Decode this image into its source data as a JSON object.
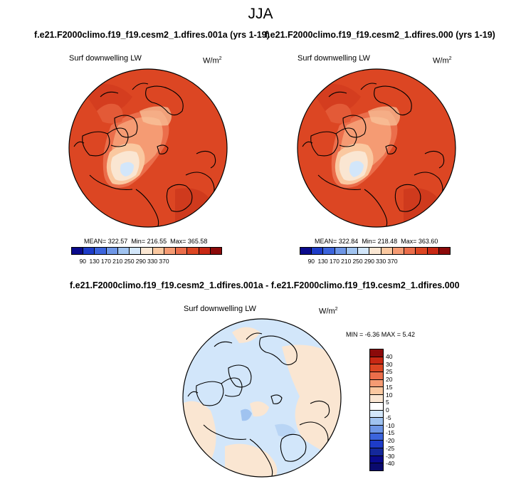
{
  "title": "JJA",
  "panels": [
    {
      "case": "f.e21.F2000climo.f19_f19.cesm2_1.dfires.001a (yrs 1-19)",
      "variable": "Surf downwelling LW",
      "units": "W/m",
      "units_exp": "2",
      "mean_text": "MEAN= 322.57",
      "min_text": "Min= 216.55",
      "max_text": "Max= 365.58"
    },
    {
      "case": "f.e21.F2000climo.f19_f19.cesm2_1.dfires.000 (yrs 1-19)",
      "variable": "Surf downwelling LW",
      "units": "W/m",
      "units_exp": "2",
      "mean_text": "MEAN= 322.84",
      "min_text": "Min= 218.48",
      "max_text": "Max= 363.60"
    }
  ],
  "abs_colorbar": {
    "ticks": [
      "90",
      "130",
      "170",
      "210",
      "250",
      "290",
      "330",
      "370"
    ],
    "colors": [
      "#0a0a8c",
      "#1e3cc8",
      "#3c64dc",
      "#6e96e6",
      "#a0c3f0",
      "#d2e6fa",
      "#fae6d2",
      "#fac8a0",
      "#f59b73",
      "#eb6e4b",
      "#dc4623",
      "#c82814",
      "#8c0a0a"
    ]
  },
  "diff": {
    "title": "f.e21.F2000climo.f19_f19.cesm2_1.dfires.001a - f.e21.F2000climo.f19_f19.cesm2_1.dfires.000",
    "variable": "Surf downwelling LW",
    "units": "W/m",
    "units_exp": "2",
    "minmax_text": "MIN = -6.36 MAX =   5.42",
    "colorbar": {
      "ticks": [
        "40",
        "30",
        "25",
        "20",
        "15",
        "10",
        "5",
        "0",
        "-5",
        "-10",
        "-15",
        "-20",
        "-25",
        "-30",
        "-40"
      ],
      "colors": [
        "#8c0a0a",
        "#c82814",
        "#dc4623",
        "#eb6e4b",
        "#f59b73",
        "#fac8a0",
        "#fae6d2",
        "#ffffff",
        "#d2e6fa",
        "#a0c3f0",
        "#6e96e6",
        "#3c64dc",
        "#1e3cc8",
        "#14289b",
        "#0a0a8c",
        "#0a0a6e"
      ]
    }
  }
}
